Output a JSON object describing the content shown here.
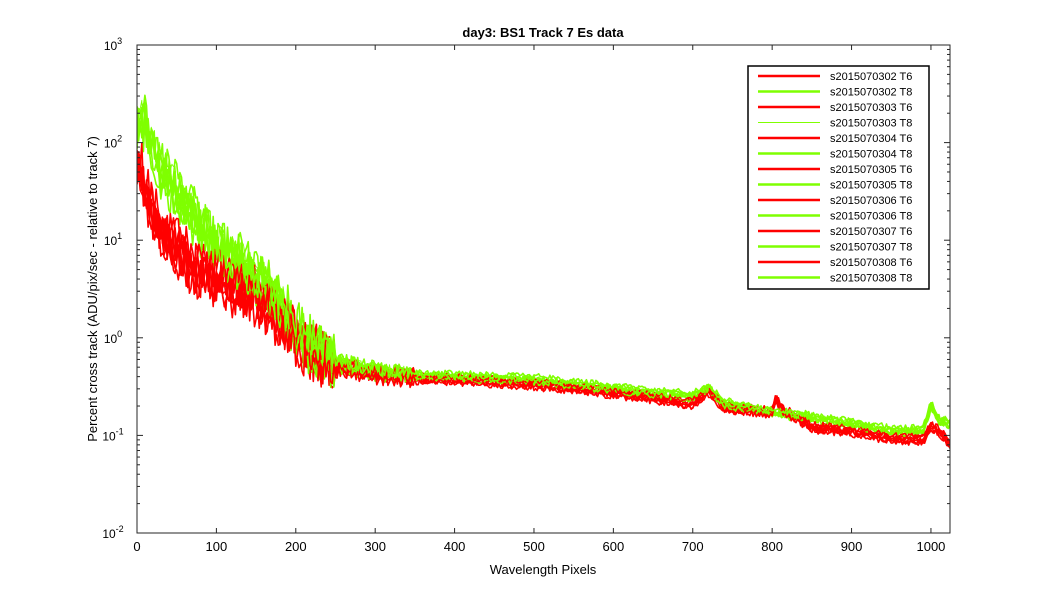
{
  "chart_data": {
    "type": "line",
    "title": "day3: BS1  Track 7 Es data",
    "xlabel": "Wavelength Pixels",
    "ylabel": "Percent cross track (ADU/pix/sec - relative to track 7)",
    "xlim": [
      0,
      1024
    ],
    "ylim": [
      0.01,
      1000
    ],
    "yscale": "log",
    "grid": false,
    "legend_position": "top-right",
    "x_ticks": [
      "0",
      "100",
      "200",
      "300",
      "400",
      "500",
      "600",
      "700",
      "800",
      "900",
      "1000"
    ],
    "y_ticks": [
      {
        "base": "10",
        "exp": "-2"
      },
      {
        "base": "10",
        "exp": "-1"
      },
      {
        "base": "10",
        "exp": "0"
      },
      {
        "base": "10",
        "exp": "1"
      },
      {
        "base": "10",
        "exp": "2"
      },
      {
        "base": "10",
        "exp": "3"
      }
    ],
    "series": [
      {
        "name": "s2015070302 T6",
        "color": "#ff0000",
        "group": "T6",
        "offset": 0.04,
        "width": 2.5
      },
      {
        "name": "s2015070302 T8",
        "color": "#7fff00",
        "group": "T8",
        "offset": 0.0,
        "width": 2.5
      },
      {
        "name": "s2015070303 T6",
        "color": "#ff0000",
        "group": "T6",
        "offset": -0.03,
        "width": 2.5
      },
      {
        "name": "s2015070303 T8",
        "color": "#7fff00",
        "group": "T8",
        "offset": 0.05,
        "width": 1.0
      },
      {
        "name": "s2015070304 T6",
        "color": "#ff0000",
        "group": "T6",
        "offset": 0.08,
        "width": 2.5
      },
      {
        "name": "s2015070304 T8",
        "color": "#7fff00",
        "group": "T8",
        "offset": -0.04,
        "width": 2.5
      },
      {
        "name": "s2015070305 T6",
        "color": "#ff0000",
        "group": "T6",
        "offset": -0.07,
        "width": 2.5
      },
      {
        "name": "s2015070305 T8",
        "color": "#7fff00",
        "group": "T8",
        "offset": 0.09,
        "width": 2.5
      },
      {
        "name": "s2015070306 T6",
        "color": "#ff0000",
        "group": "T6",
        "offset": 0.01,
        "width": 2.5
      },
      {
        "name": "s2015070306 T8",
        "color": "#7fff00",
        "group": "T8",
        "offset": -0.08,
        "width": 2.5
      },
      {
        "name": "s2015070307 T6",
        "color": "#ff0000",
        "group": "T6",
        "offset": 0.12,
        "width": 2.5
      },
      {
        "name": "s2015070307 T8",
        "color": "#7fff00",
        "group": "T8",
        "offset": 0.03,
        "width": 2.5
      },
      {
        "name": "s2015070308 T6",
        "color": "#ff0000",
        "group": "T6",
        "offset": -0.1,
        "width": 2.5
      },
      {
        "name": "s2015070308 T8",
        "color": "#7fff00",
        "group": "T8",
        "offset": 0.13,
        "width": 2.5
      }
    ],
    "envelope": {
      "T8": [
        [
          0,
          150
        ],
        [
          5,
          180
        ],
        [
          10,
          140
        ],
        [
          20,
          80
        ],
        [
          30,
          50
        ],
        [
          50,
          30
        ],
        [
          75,
          15
        ],
        [
          100,
          8
        ],
        [
          125,
          6
        ],
        [
          150,
          4
        ],
        [
          175,
          2.5
        ],
        [
          200,
          1.2
        ],
        [
          225,
          0.7
        ],
        [
          250,
          0.55
        ],
        [
          275,
          0.5
        ],
        [
          300,
          0.45
        ],
        [
          350,
          0.4
        ],
        [
          400,
          0.4
        ],
        [
          450,
          0.38
        ],
        [
          500,
          0.37
        ],
        [
          550,
          0.33
        ],
        [
          600,
          0.3
        ],
        [
          650,
          0.27
        ],
        [
          700,
          0.25
        ],
        [
          720,
          0.3
        ],
        [
          740,
          0.21
        ],
        [
          800,
          0.17
        ],
        [
          850,
          0.15
        ],
        [
          900,
          0.13
        ],
        [
          950,
          0.11
        ],
        [
          990,
          0.11
        ],
        [
          1000,
          0.2
        ],
        [
          1010,
          0.14
        ],
        [
          1024,
          0.13
        ]
      ],
      "T6": [
        [
          0,
          60
        ],
        [
          5,
          50
        ],
        [
          10,
          30
        ],
        [
          20,
          18
        ],
        [
          30,
          12
        ],
        [
          50,
          8
        ],
        [
          75,
          5
        ],
        [
          100,
          4
        ],
        [
          125,
          3.2
        ],
        [
          150,
          2.5
        ],
        [
          175,
          1.6
        ],
        [
          200,
          1.0
        ],
        [
          225,
          0.65
        ],
        [
          250,
          0.5
        ],
        [
          275,
          0.46
        ],
        [
          300,
          0.42
        ],
        [
          350,
          0.38
        ],
        [
          400,
          0.37
        ],
        [
          450,
          0.35
        ],
        [
          500,
          0.33
        ],
        [
          550,
          0.3
        ],
        [
          600,
          0.27
        ],
        [
          650,
          0.24
        ],
        [
          700,
          0.21
        ],
        [
          720,
          0.28
        ],
        [
          740,
          0.19
        ],
        [
          800,
          0.17
        ],
        [
          805,
          0.24
        ],
        [
          810,
          0.19
        ],
        [
          850,
          0.12
        ],
        [
          900,
          0.11
        ],
        [
          950,
          0.092
        ],
        [
          990,
          0.09
        ],
        [
          1000,
          0.12
        ],
        [
          1010,
          0.11
        ],
        [
          1024,
          0.08
        ]
      ]
    }
  }
}
